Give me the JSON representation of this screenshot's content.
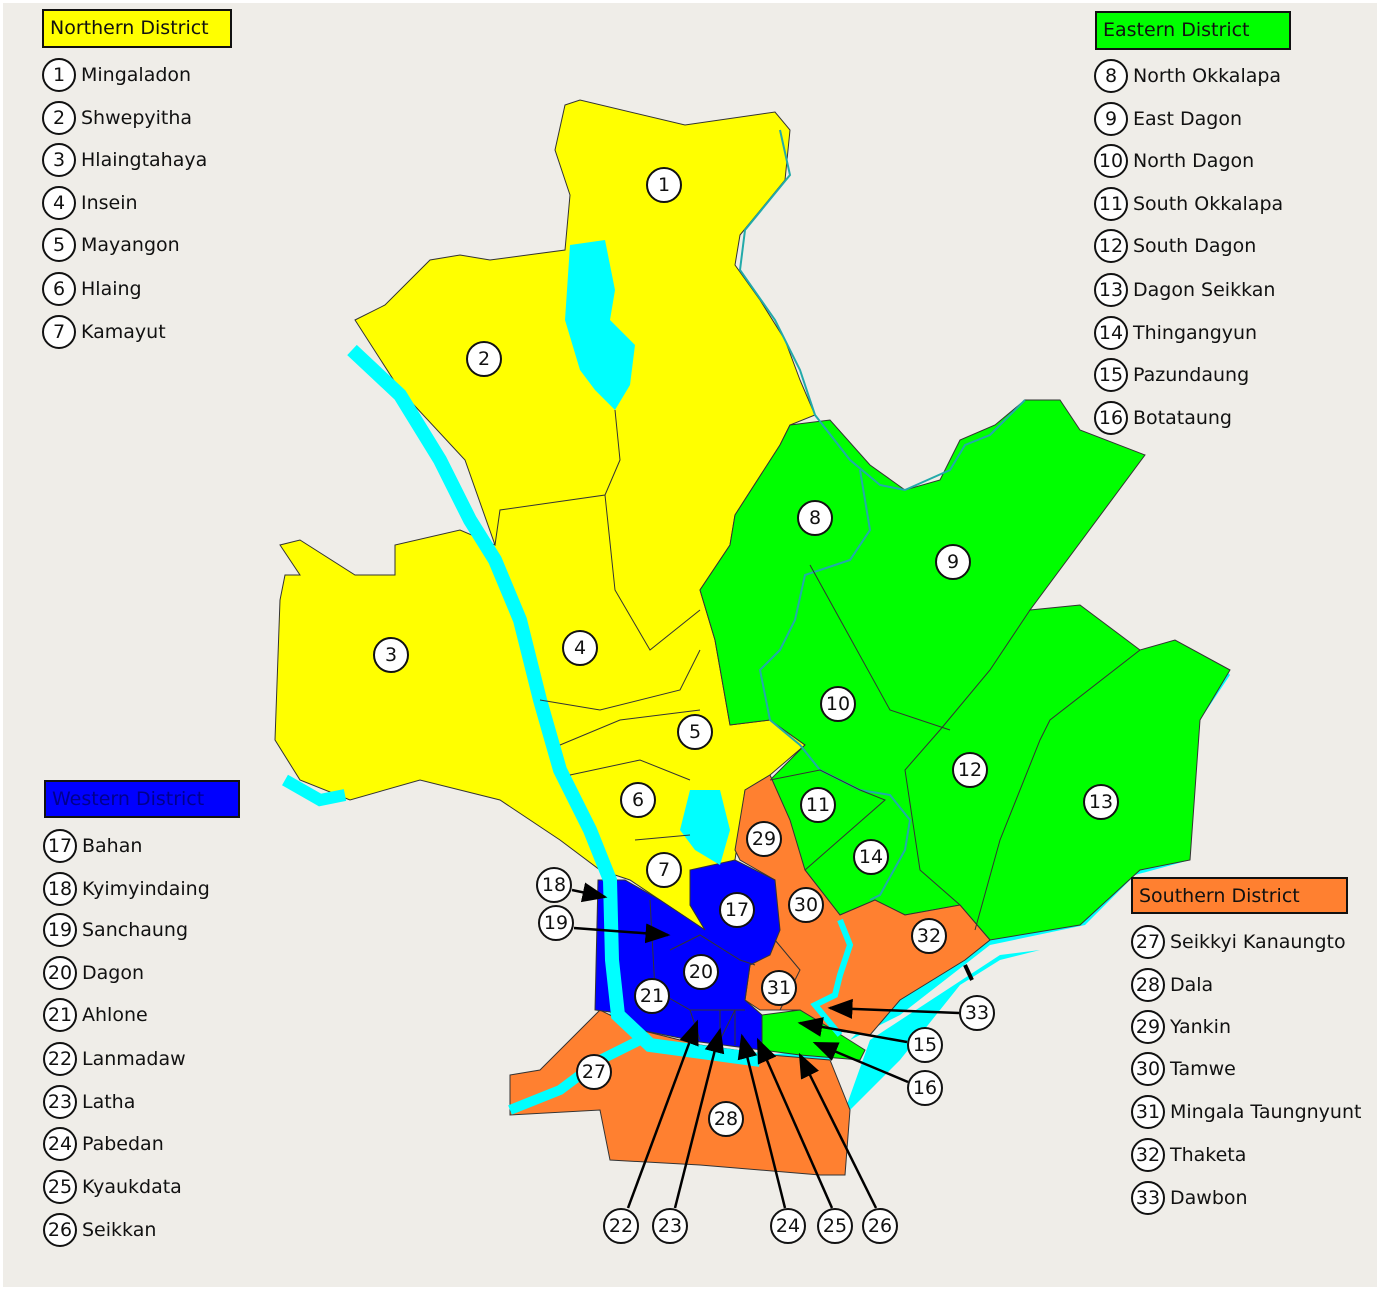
{
  "colors": {
    "background": "#efede8",
    "water": "#00ffff",
    "northern": "#ffff00",
    "eastern": "#00ff00",
    "western": "#0000ff",
    "southern": "#ff8030"
  },
  "districts": [
    {
      "id": "northern",
      "name": "Northern District",
      "color": "#ffff00",
      "townships": [
        {
          "num": "1",
          "name": "Mingaladon"
        },
        {
          "num": "2",
          "name": "Shwepyitha"
        },
        {
          "num": "3",
          "name": "Hlaingtahaya"
        },
        {
          "num": "4",
          "name": "Insein"
        },
        {
          "num": "5",
          "name": "Mayangon"
        },
        {
          "num": "6",
          "name": "Hlaing"
        },
        {
          "num": "7",
          "name": "Kamayut"
        }
      ]
    },
    {
      "id": "eastern",
      "name": "Eastern District",
      "color": "#00ff00",
      "townships": [
        {
          "num": "8",
          "name": "North Okkalapa"
        },
        {
          "num": "9",
          "name": "East Dagon"
        },
        {
          "num": "10",
          "name": "North Dagon"
        },
        {
          "num": "11",
          "name": "South Okkalapa"
        },
        {
          "num": "12",
          "name": "South Dagon"
        },
        {
          "num": "13",
          "name": "Dagon Seikkan"
        },
        {
          "num": "14",
          "name": "Thingangyun"
        },
        {
          "num": "15",
          "name": "Pazundaung"
        },
        {
          "num": "16",
          "name": "Botataung"
        }
      ]
    },
    {
      "id": "western",
      "name": "Western District",
      "color": "#0000ff",
      "townships": [
        {
          "num": "17",
          "name": "Bahan"
        },
        {
          "num": "18",
          "name": "Kyimyindaing"
        },
        {
          "num": "19",
          "name": "Sanchaung"
        },
        {
          "num": "20",
          "name": "Dagon"
        },
        {
          "num": "21",
          "name": "Ahlone"
        },
        {
          "num": "22",
          "name": "Lanmadaw"
        },
        {
          "num": "23",
          "name": "Latha"
        },
        {
          "num": "24",
          "name": "Pabedan"
        },
        {
          "num": "25",
          "name": "Kyaukdata"
        },
        {
          "num": "26",
          "name": "Seikkan"
        }
      ]
    },
    {
      "id": "southern",
      "name": "Southern District",
      "color": "#ff8030",
      "townships": [
        {
          "num": "27",
          "name": "Seikkyi Kanaungto"
        },
        {
          "num": "28",
          "name": "Dala"
        },
        {
          "num": "29",
          "name": "Yankin"
        },
        {
          "num": "30",
          "name": "Tamwe"
        },
        {
          "num": "31",
          "name": "Mingala Taungnyunt"
        },
        {
          "num": "32",
          "name": "Thaketa"
        },
        {
          "num": "33",
          "name": "Dawbon"
        }
      ]
    }
  ]
}
